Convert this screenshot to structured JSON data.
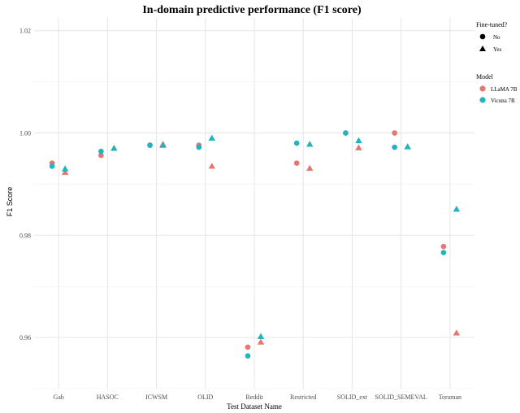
{
  "chart_data": {
    "type": "scatter",
    "title": "In-domain predictive performance (F1 score)",
    "xlabel": "Test Dataset Name",
    "ylabel": "F1 Score",
    "categories": [
      "Gab",
      "HASOC",
      "ICWSM",
      "OLID",
      "Reddit",
      "Restricted",
      "SOLID_ext",
      "SOLID_SEMEVAL",
      "Toraman"
    ],
    "ylim": [
      0.95,
      1.0225
    ],
    "yticks": [
      0.96,
      0.98,
      1.0,
      1.02
    ],
    "ytick_labels": [
      "0.96",
      "0.98",
      "1.00",
      "1.02"
    ],
    "grid": true,
    "legend_position": "right",
    "legend": {
      "shape_title": "Fine-tuned?",
      "shape_entries": [
        {
          "label": "No",
          "shape": "circle"
        },
        {
          "label": "Yes",
          "shape": "triangle"
        }
      ],
      "color_title": "Model",
      "color_entries": [
        {
          "label": "LLaMA 7B",
          "color": "#e6766f"
        },
        {
          "label": "Vicuna 7B",
          "color": "#1fb5be"
        }
      ]
    },
    "series": [
      {
        "model": "LLaMA 7B",
        "fine_tuned": "No",
        "color": "#e6766f",
        "shape": "circle",
        "values": [
          0.9941,
          0.9956,
          0.9976,
          0.9976,
          0.9581,
          0.9941,
          1.0,
          1.0,
          0.9778
        ]
      },
      {
        "model": "LLaMA 7B",
        "fine_tuned": "Yes",
        "color": "#e6766f",
        "shape": "triangle",
        "values": [
          0.9923,
          0.997,
          0.9978,
          0.9935,
          0.9591,
          0.9931,
          0.9971,
          0.9973,
          0.9609
        ]
      },
      {
        "model": "Vicuna 7B",
        "fine_tuned": "No",
        "color": "#1fb5be",
        "shape": "circle",
        "values": [
          0.9935,
          0.9964,
          0.9976,
          0.9972,
          0.9564,
          0.998,
          1.0,
          0.9972,
          0.9766
        ]
      },
      {
        "model": "Vicuna 7B",
        "fine_tuned": "Yes",
        "color": "#1fb5be",
        "shape": "triangle",
        "values": [
          0.993,
          0.997,
          0.9976,
          0.999,
          0.9602,
          0.9978,
          0.9985,
          0.9973,
          0.9851
        ]
      }
    ]
  }
}
